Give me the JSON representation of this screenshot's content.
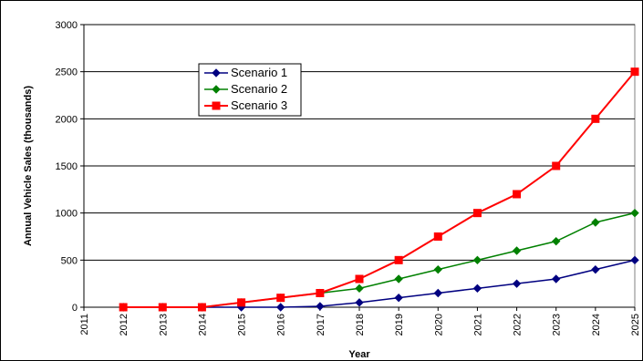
{
  "chart_data": {
    "type": "line",
    "title": "",
    "xlabel": "Year",
    "ylabel": "Annual Vehicle Sales (thousands)",
    "x": [
      "2011",
      "2012",
      "2013",
      "2014",
      "2015",
      "2016",
      "2017",
      "2018",
      "2019",
      "2020",
      "2021",
      "2022",
      "2023",
      "2024",
      "2025"
    ],
    "ylim": [
      0,
      3000
    ],
    "yticks": [
      "0",
      "500",
      "1000",
      "1500",
      "2000",
      "2500",
      "3000"
    ],
    "grid": "horizontal",
    "legend_position": "top-left",
    "series": [
      {
        "name": "Scenario 1",
        "color": "#000080",
        "marker": "diamond",
        "values": [
          null,
          0,
          0,
          0,
          0,
          0,
          10,
          50,
          100,
          150,
          200,
          250,
          300,
          400,
          500
        ]
      },
      {
        "name": "Scenario 2",
        "color": "#008000",
        "marker": "diamond",
        "values": [
          null,
          0,
          0,
          0,
          50,
          100,
          150,
          200,
          300,
          400,
          500,
          600,
          700,
          900,
          1000
        ]
      },
      {
        "name": "Scenario 3",
        "color": "#ff0000",
        "marker": "square",
        "values": [
          null,
          0,
          0,
          0,
          50,
          100,
          150,
          300,
          500,
          750,
          1000,
          1200,
          1500,
          2000,
          2500
        ]
      }
    ]
  }
}
